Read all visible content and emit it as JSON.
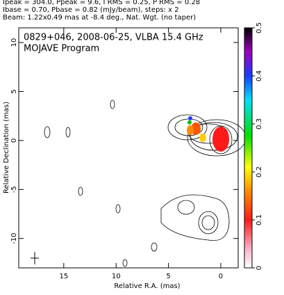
{
  "chart_data": {
    "type": "contour",
    "header": [
      "Ipeak = 304.0, Ppeak = 9.6, I RMS = 0.25, P RMS = 0.28",
      "Ibase = 0.70, Pbase = 0.82 (mJy/beam), steps: x 2",
      "Beam: 1.22x0.49 mas at -8.4 deg., Nat. Wgt. (no taper)"
    ],
    "title": "0829+046, 2008-06-25, VLBA 15.4 GHz",
    "subtitle": "MOJAVE Program",
    "xlabel": "Relative R.A. (mas)",
    "ylabel": "Relative Declination (mas)",
    "xlim": [
      19.3,
      -1.66
    ],
    "xticks": [
      15,
      10,
      5,
      0
    ],
    "ylim": [
      11.5,
      -13.0
    ],
    "yticks": [
      10,
      5,
      0,
      -5,
      -10
    ],
    "colorbar": {
      "lim": [
        0,
        0.5
      ],
      "ticks": [
        0,
        0.1,
        0.2,
        0.3,
        0.4,
        0.5
      ]
    }
  }
}
